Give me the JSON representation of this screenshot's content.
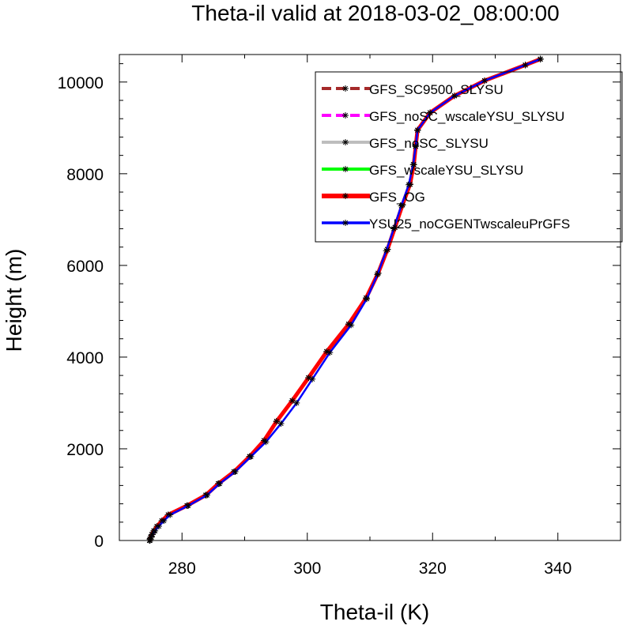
{
  "chart_data": {
    "type": "line",
    "title": "Theta-il valid at 2018-03-02_08:00:00",
    "xlabel": "Theta-il (K)",
    "ylabel": "Height (m)",
    "xlim": [
      270,
      350
    ],
    "ylim": [
      0,
      10600
    ],
    "xticks": [
      280,
      300,
      320,
      340
    ],
    "yticks": [
      0,
      2000,
      4000,
      6000,
      8000,
      10000
    ],
    "xtick_labels": [
      "280",
      "300",
      "320",
      "340"
    ],
    "ytick_labels": [
      "0",
      "2000",
      "4000",
      "6000",
      "8000",
      "10000"
    ],
    "grid": false,
    "legend_position": "top-right",
    "series": [
      {
        "name": "GFS_SC9500_SLYSU",
        "color": "#A52A2A",
        "dash": "dashed",
        "marker": "asterisk",
        "points": [
          [
            274.8,
            0
          ],
          [
            274.9,
            30
          ],
          [
            275.0,
            70
          ],
          [
            275.2,
            130
          ],
          [
            275.5,
            210
          ],
          [
            276.0,
            310
          ],
          [
            276.8,
            430
          ],
          [
            277.8,
            560
          ],
          [
            280.8,
            760
          ],
          [
            283.8,
            990
          ],
          [
            285.8,
            1240
          ],
          [
            288.3,
            1500
          ],
          [
            290.8,
            1830
          ],
          [
            293.1,
            2180
          ],
          [
            295.1,
            2600
          ],
          [
            297.6,
            3050
          ],
          [
            300.2,
            3550
          ],
          [
            303.1,
            4120
          ],
          [
            306.6,
            4720
          ],
          [
            309.4,
            5290
          ],
          [
            311.3,
            5830
          ],
          [
            312.8,
            6350
          ],
          [
            314.0,
            6830
          ],
          [
            315.2,
            7320
          ],
          [
            316.4,
            7770
          ],
          [
            317.0,
            8200
          ],
          [
            317.3,
            8600
          ],
          [
            317.6,
            8950
          ],
          [
            319.6,
            9330
          ],
          [
            323.5,
            9700
          ],
          [
            328.3,
            10030
          ],
          [
            334.8,
            10370
          ],
          [
            337.2,
            10500
          ]
        ]
      },
      {
        "name": "GFS_noSC_wscaleYSU_SLYSU",
        "color": "#FF00FF",
        "dash": "dashed",
        "marker": "asterisk",
        "points": [
          [
            274.8,
            0
          ],
          [
            274.9,
            30
          ],
          [
            275.0,
            70
          ],
          [
            275.2,
            130
          ],
          [
            275.5,
            210
          ],
          [
            276.0,
            310
          ],
          [
            276.8,
            430
          ],
          [
            277.8,
            560
          ],
          [
            280.8,
            760
          ],
          [
            283.8,
            990
          ],
          [
            285.8,
            1240
          ],
          [
            288.3,
            1500
          ],
          [
            290.8,
            1830
          ],
          [
            293.1,
            2180
          ],
          [
            295.1,
            2600
          ],
          [
            297.6,
            3050
          ],
          [
            300.2,
            3550
          ],
          [
            303.1,
            4120
          ],
          [
            306.6,
            4720
          ],
          [
            309.4,
            5290
          ],
          [
            311.3,
            5830
          ],
          [
            312.8,
            6350
          ],
          [
            314.0,
            6830
          ],
          [
            315.2,
            7320
          ],
          [
            316.4,
            7770
          ],
          [
            317.0,
            8200
          ],
          [
            317.3,
            8600
          ],
          [
            317.6,
            8950
          ],
          [
            319.6,
            9330
          ],
          [
            323.5,
            9700
          ],
          [
            328.3,
            10030
          ],
          [
            334.8,
            10370
          ],
          [
            337.2,
            10500
          ]
        ]
      },
      {
        "name": "GFS_noSC_SLYSU",
        "color": "#BEBEBE",
        "dash": "solid",
        "marker": "asterisk",
        "points": [
          [
            274.8,
            0
          ],
          [
            274.9,
            30
          ],
          [
            275.0,
            70
          ],
          [
            275.2,
            130
          ],
          [
            275.5,
            210
          ],
          [
            276.0,
            310
          ],
          [
            276.8,
            430
          ],
          [
            277.8,
            560
          ],
          [
            280.8,
            760
          ],
          [
            283.8,
            990
          ],
          [
            285.8,
            1240
          ],
          [
            288.3,
            1500
          ],
          [
            290.8,
            1830
          ],
          [
            293.1,
            2180
          ],
          [
            295.1,
            2600
          ],
          [
            297.6,
            3050
          ],
          [
            300.2,
            3550
          ],
          [
            303.1,
            4120
          ],
          [
            306.6,
            4720
          ],
          [
            309.4,
            5290
          ],
          [
            311.3,
            5830
          ],
          [
            312.8,
            6350
          ],
          [
            314.0,
            6830
          ],
          [
            315.2,
            7320
          ],
          [
            316.4,
            7770
          ],
          [
            317.0,
            8200
          ],
          [
            317.3,
            8600
          ],
          [
            317.6,
            8950
          ],
          [
            319.6,
            9330
          ],
          [
            323.5,
            9700
          ],
          [
            328.3,
            10030
          ],
          [
            334.8,
            10370
          ],
          [
            337.2,
            10500
          ]
        ]
      },
      {
        "name": "GFS_wscaleYSU_SLYSU",
        "color": "#00FF00",
        "dash": "solid",
        "marker": "asterisk",
        "points": [
          [
            274.8,
            0
          ],
          [
            274.9,
            30
          ],
          [
            275.0,
            70
          ],
          [
            275.2,
            130
          ],
          [
            275.5,
            210
          ],
          [
            276.0,
            310
          ],
          [
            276.8,
            430
          ],
          [
            277.8,
            560
          ],
          [
            280.8,
            760
          ],
          [
            283.8,
            990
          ],
          [
            285.8,
            1240
          ],
          [
            288.3,
            1500
          ],
          [
            290.8,
            1830
          ],
          [
            293.1,
            2180
          ],
          [
            295.1,
            2600
          ],
          [
            297.6,
            3050
          ],
          [
            300.2,
            3550
          ],
          [
            303.1,
            4120
          ],
          [
            306.6,
            4720
          ],
          [
            309.4,
            5290
          ],
          [
            311.3,
            5830
          ],
          [
            312.8,
            6350
          ],
          [
            314.0,
            6830
          ],
          [
            315.2,
            7320
          ],
          [
            316.4,
            7770
          ],
          [
            317.0,
            8200
          ],
          [
            317.3,
            8600
          ],
          [
            317.6,
            8950
          ],
          [
            319.6,
            9330
          ],
          [
            323.5,
            9700
          ],
          [
            328.3,
            10030
          ],
          [
            334.8,
            10370
          ],
          [
            337.2,
            10500
          ]
        ]
      },
      {
        "name": "GFS_OG",
        "color": "#FF0000",
        "dash": "solid",
        "marker": "asterisk",
        "points": [
          [
            274.8,
            0
          ],
          [
            274.9,
            30
          ],
          [
            275.0,
            70
          ],
          [
            275.2,
            130
          ],
          [
            275.5,
            210
          ],
          [
            276.0,
            310
          ],
          [
            276.8,
            430
          ],
          [
            277.8,
            560
          ],
          [
            280.8,
            760
          ],
          [
            283.8,
            990
          ],
          [
            285.8,
            1240
          ],
          [
            288.3,
            1500
          ],
          [
            290.8,
            1830
          ],
          [
            293.1,
            2180
          ],
          [
            295.1,
            2600
          ],
          [
            297.6,
            3050
          ],
          [
            300.2,
            3550
          ],
          [
            303.1,
            4120
          ],
          [
            306.6,
            4720
          ],
          [
            309.4,
            5290
          ],
          [
            311.3,
            5830
          ],
          [
            312.8,
            6350
          ],
          [
            314.0,
            6830
          ],
          [
            315.2,
            7320
          ],
          [
            316.4,
            7770
          ],
          [
            317.0,
            8200
          ],
          [
            317.3,
            8600
          ],
          [
            317.6,
            8950
          ],
          [
            319.6,
            9330
          ],
          [
            323.5,
            9700
          ],
          [
            328.3,
            10030
          ],
          [
            334.8,
            10370
          ],
          [
            337.2,
            10500
          ]
        ]
      },
      {
        "name": "YSU25_noCGENTwscaleuPrGFS",
        "color": "#0000FF",
        "dash": "solid",
        "marker": "asterisk",
        "points": [
          [
            274.9,
            0
          ],
          [
            275.0,
            30
          ],
          [
            275.1,
            70
          ],
          [
            275.3,
            130
          ],
          [
            275.7,
            210
          ],
          [
            276.3,
            310
          ],
          [
            277.1,
            430
          ],
          [
            278.1,
            560
          ],
          [
            281.0,
            760
          ],
          [
            284.0,
            990
          ],
          [
            286.0,
            1240
          ],
          [
            288.5,
            1500
          ],
          [
            291.0,
            1830
          ],
          [
            293.4,
            2150
          ],
          [
            295.8,
            2550
          ],
          [
            298.3,
            3000
          ],
          [
            300.8,
            3520
          ],
          [
            303.6,
            4100
          ],
          [
            307.0,
            4700
          ],
          [
            309.5,
            5270
          ],
          [
            311.2,
            5800
          ],
          [
            312.6,
            6320
          ],
          [
            313.8,
            6800
          ],
          [
            315.0,
            7300
          ],
          [
            316.2,
            7760
          ],
          [
            316.9,
            8200
          ],
          [
            317.3,
            8600
          ],
          [
            317.6,
            8950
          ],
          [
            319.6,
            9330
          ],
          [
            323.5,
            9700
          ],
          [
            328.3,
            10030
          ],
          [
            334.8,
            10370
          ],
          [
            337.2,
            10500
          ]
        ]
      }
    ]
  }
}
